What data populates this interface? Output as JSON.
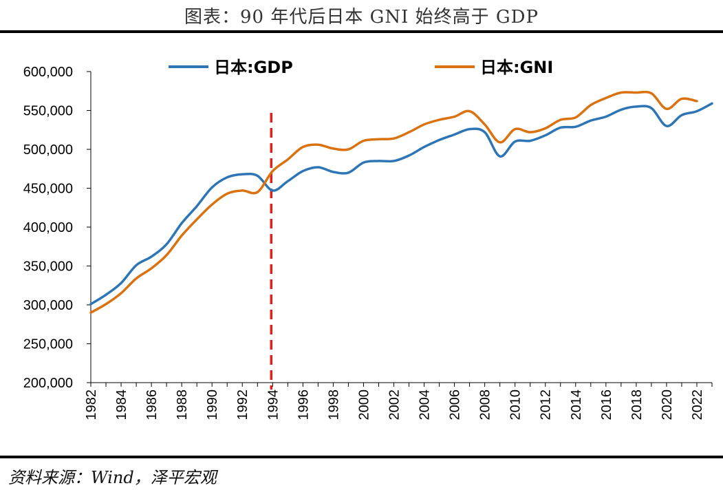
{
  "header": {
    "title": "图表：90 年代后日本 GNI 始终高于 GDP"
  },
  "footer": {
    "source": "资料来源：Wind，泽平宏观"
  },
  "colors": {
    "gdp": "#2E75B6",
    "gni": "#D9720F",
    "marker": "#E0201B",
    "axis": "#000000"
  },
  "chart_data": {
    "type": "line",
    "title": "",
    "xlabel": "",
    "ylabel": "",
    "ylim": [
      200000,
      600000
    ],
    "xlim": [
      1982,
      2023
    ],
    "y_ticks": [
      200000,
      250000,
      300000,
      350000,
      400000,
      450000,
      500000,
      550000,
      600000
    ],
    "y_tick_labels": [
      "200,000",
      "250,000",
      "300,000",
      "350,000",
      "400,000",
      "450,000",
      "500,000",
      "550,000",
      "600,000"
    ],
    "x_ticks": [
      1982,
      1984,
      1986,
      1988,
      1990,
      1992,
      1994,
      1996,
      1998,
      2000,
      2002,
      2004,
      2006,
      2008,
      2010,
      2012,
      2014,
      2016,
      2018,
      2020,
      2022
    ],
    "x_tick_labels": [
      "1982",
      "1984",
      "1986",
      "1988",
      "1990",
      "1992",
      "1994",
      "1996",
      "1998",
      "2000",
      "2002",
      "2004",
      "2006",
      "2008",
      "2010",
      "2012",
      "2014",
      "2016",
      "2018",
      "2020",
      "2022"
    ],
    "legend_position": "top",
    "grid": false,
    "reference_line": {
      "x": 1994,
      "style": "dashed"
    },
    "series": [
      {
        "name": "日本:GDP",
        "x": [
          1982,
          1983,
          1984,
          1985,
          1986,
          1987,
          1988,
          1989,
          1990,
          1991,
          1992,
          1993,
          1994,
          1995,
          1996,
          1997,
          1998,
          1999,
          2000,
          2001,
          2002,
          2003,
          2004,
          2005,
          2006,
          2007,
          2008,
          2009,
          2010,
          2011,
          2012,
          2013,
          2014,
          2015,
          2016,
          2017,
          2018,
          2019,
          2020,
          2021,
          2022,
          2023
        ],
        "values": [
          301000,
          313000,
          328000,
          351000,
          362000,
          378000,
          405000,
          427000,
          451000,
          464000,
          468000,
          466000,
          447000,
          459000,
          472000,
          477000,
          471000,
          470000,
          483000,
          485000,
          485000,
          492000,
          503000,
          512000,
          519000,
          526000,
          522000,
          491000,
          510000,
          511000,
          518000,
          528000,
          529000,
          537000,
          542000,
          551000,
          555000,
          553000,
          530000,
          544000,
          549000,
          559000
        ]
      },
      {
        "name": "日本:GNI",
        "x": [
          1982,
          1983,
          1984,
          1985,
          1986,
          1987,
          1988,
          1989,
          1990,
          1991,
          1992,
          1993,
          1994,
          1995,
          1996,
          1997,
          1998,
          1999,
          2000,
          2001,
          2002,
          2003,
          2004,
          2005,
          2006,
          2007,
          2008,
          2009,
          2010,
          2011,
          2012,
          2013,
          2014,
          2015,
          2016,
          2017,
          2018,
          2019,
          2020,
          2021,
          2022
        ],
        "values": [
          290000,
          301000,
          315000,
          334000,
          347000,
          364000,
          389000,
          410000,
          429000,
          443000,
          447000,
          445000,
          472000,
          487000,
          503000,
          506000,
          501000,
          500000,
          511000,
          513000,
          514000,
          522000,
          532000,
          538000,
          542000,
          549000,
          532000,
          509000,
          526000,
          522000,
          527000,
          538000,
          541000,
          557000,
          566000,
          573000,
          573000,
          572000,
          552000,
          565000,
          562000
        ]
      }
    ]
  }
}
